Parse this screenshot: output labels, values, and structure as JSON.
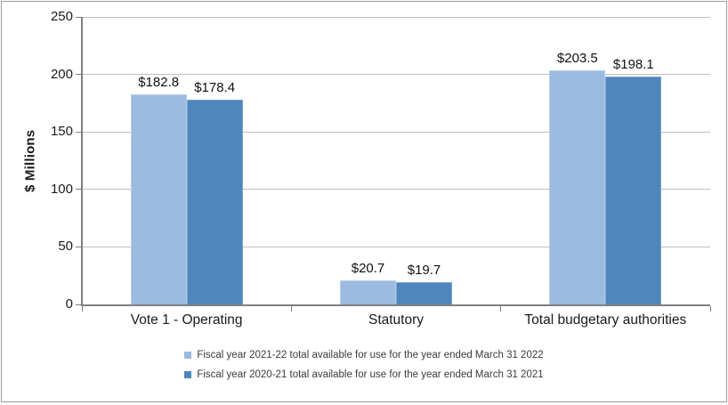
{
  "chart_data": {
    "type": "bar",
    "title": "",
    "ylabel": "$ Millions",
    "xlabel": "",
    "categories": [
      "Vote 1 - Operating",
      "Statutory",
      "Total budgetary authorities"
    ],
    "series": [
      {
        "name": "Fiscal year 2021-22 total available for use for the year ended March 31 2022",
        "values": [
          182.8,
          20.7,
          203.5
        ],
        "data_labels": [
          "$182.8",
          "$20.7",
          "$203.5"
        ],
        "color": "#9BBBE0",
        "border_color": "#B7CDE9"
      },
      {
        "name": "Fiscal year 2020-21 total available for use for the year ended March 31 2021",
        "values": [
          178.4,
          19.7,
          198.1
        ],
        "data_labels": [
          "$178.4",
          "$19.7",
          "$198.1"
        ],
        "color": "#4F86BC",
        "border_color": "#7AA4CF"
      }
    ],
    "ylim": [
      0,
      250
    ],
    "yticks": [
      0,
      50,
      100,
      150,
      200,
      250
    ],
    "grid": true,
    "legend_position": "bottom"
  },
  "colors": {
    "gridline": "#BFBFBF",
    "axis": "#808080",
    "frame_border": "#9A9A9A",
    "label_text": "#1A1A1A",
    "legend_text": "#3A3A3A"
  }
}
